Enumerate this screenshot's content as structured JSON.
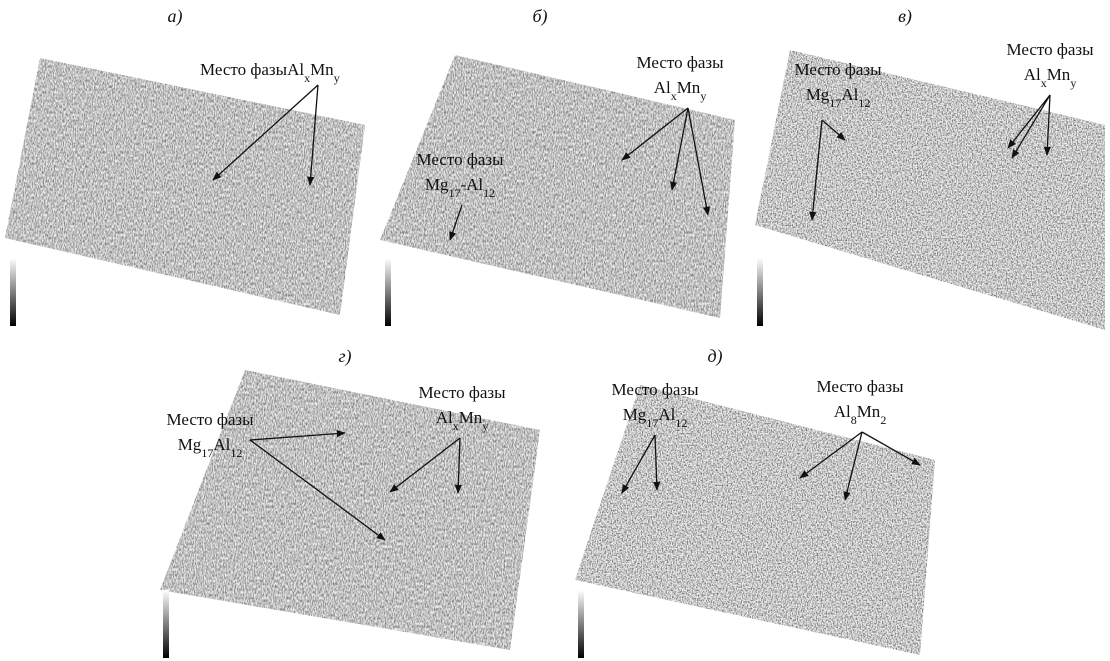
{
  "panels": [
    {
      "label": "а)",
      "annotations": [
        {
          "text": "Место фазы",
          "formula": [
            {
              "base": "Al",
              "sub": "x"
            },
            {
              "base": "Mn",
              "sub": "y"
            }
          ]
        }
      ]
    },
    {
      "label": "б)",
      "annotations": [
        {
          "text": "Место фазы",
          "formula": [
            {
              "base": "Al",
              "sub": "x"
            },
            {
              "base": "Mn",
              "sub": "y"
            }
          ]
        },
        {
          "text": "Место фазы",
          "formula": [
            {
              "base": "Mg",
              "sub": "17"
            },
            {
              "base": "-Al",
              "sub": "12"
            }
          ]
        }
      ]
    },
    {
      "label": "в)",
      "annotations": [
        {
          "text": "Место фазы",
          "formula": [
            {
              "base": "Mg",
              "sub": "17"
            },
            {
              "base": "Al",
              "sub": "12"
            }
          ]
        },
        {
          "text": "Место фазы",
          "formula": [
            {
              "base": "Al",
              "sub": "x"
            },
            {
              "base": "Mn",
              "sub": "y"
            }
          ]
        }
      ]
    },
    {
      "label": "г)",
      "annotations": [
        {
          "text": "Место фазы",
          "formula": [
            {
              "base": "Mg",
              "sub": "17"
            },
            {
              "base": "Al",
              "sub": "12"
            }
          ]
        },
        {
          "text": "Место фазы",
          "formula": [
            {
              "base": "Al",
              "sub": "x"
            },
            {
              "base": "Mn",
              "sub": "y"
            }
          ]
        }
      ]
    },
    {
      "label": "д)",
      "annotations": [
        {
          "text": "Место фазы",
          "formula": [
            {
              "base": "Mg",
              "sub": "17"
            },
            {
              "base": "Al",
              "sub": "12"
            }
          ]
        },
        {
          "text": "Место фазы",
          "formula": [
            {
              "base": "Al",
              "sub": "8"
            },
            {
              "base": "Mn",
              "sub": "2"
            }
          ]
        }
      ]
    }
  ]
}
